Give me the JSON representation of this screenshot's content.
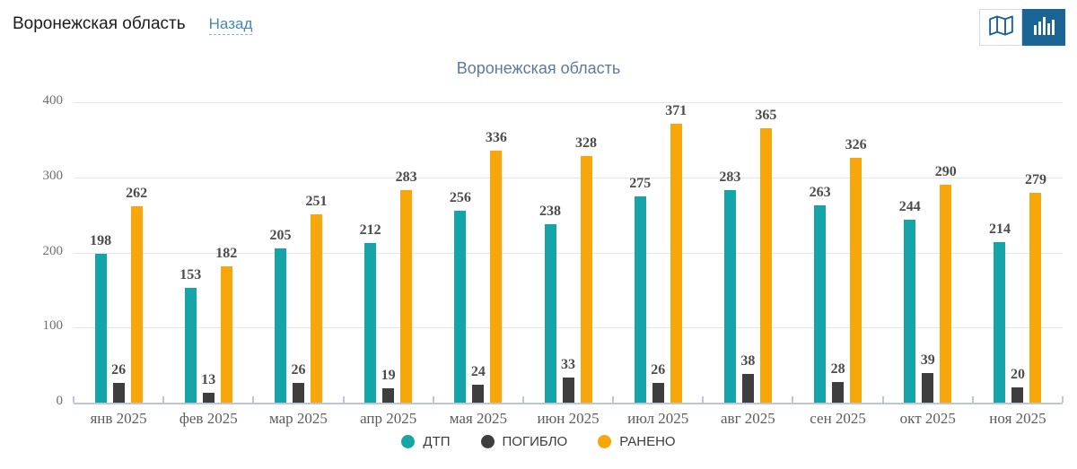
{
  "header": {
    "title": "Воронежская область",
    "back_label": "Назад"
  },
  "toolbar": {
    "buttons": [
      {
        "icon": "map-icon",
        "selected": false
      },
      {
        "icon": "bar-chart-icon",
        "selected": true
      }
    ]
  },
  "colors": {
    "accent_blue": "#1a6496",
    "link": "#4688b0",
    "chart_title": "#5d7b97",
    "grid": "#e6e6e6",
    "axis": "#bdc5da",
    "value_label": "#4c4c4c"
  },
  "chart_data": {
    "type": "bar",
    "title": "Воронежская область",
    "categories": [
      "янв 2025",
      "фев 2025",
      "мар 2025",
      "апр 2025",
      "мая 2025",
      "июн 2025",
      "июл 2025",
      "авг 2025",
      "сен 2025",
      "окт 2025",
      "ноя 2025"
    ],
    "series": [
      {
        "name": "ДТП",
        "color": "#15a5a8",
        "values": [
          198,
          153,
          205,
          212,
          256,
          238,
          275,
          283,
          263,
          244,
          214
        ]
      },
      {
        "name": "ПОГИБЛО",
        "color": "#3e3e3e",
        "values": [
          26,
          13,
          26,
          19,
          24,
          33,
          26,
          38,
          28,
          39,
          20
        ]
      },
      {
        "name": "РАНЕНО",
        "color": "#f7a70a",
        "values": [
          262,
          182,
          251,
          283,
          336,
          328,
          371,
          365,
          326,
          290,
          279
        ]
      }
    ],
    "xlabel": "",
    "ylabel": "",
    "ylim": [
      0,
      400
    ],
    "yticks": [
      0,
      100,
      200,
      300,
      400
    ],
    "grid": true,
    "legend_position": "bottom"
  }
}
